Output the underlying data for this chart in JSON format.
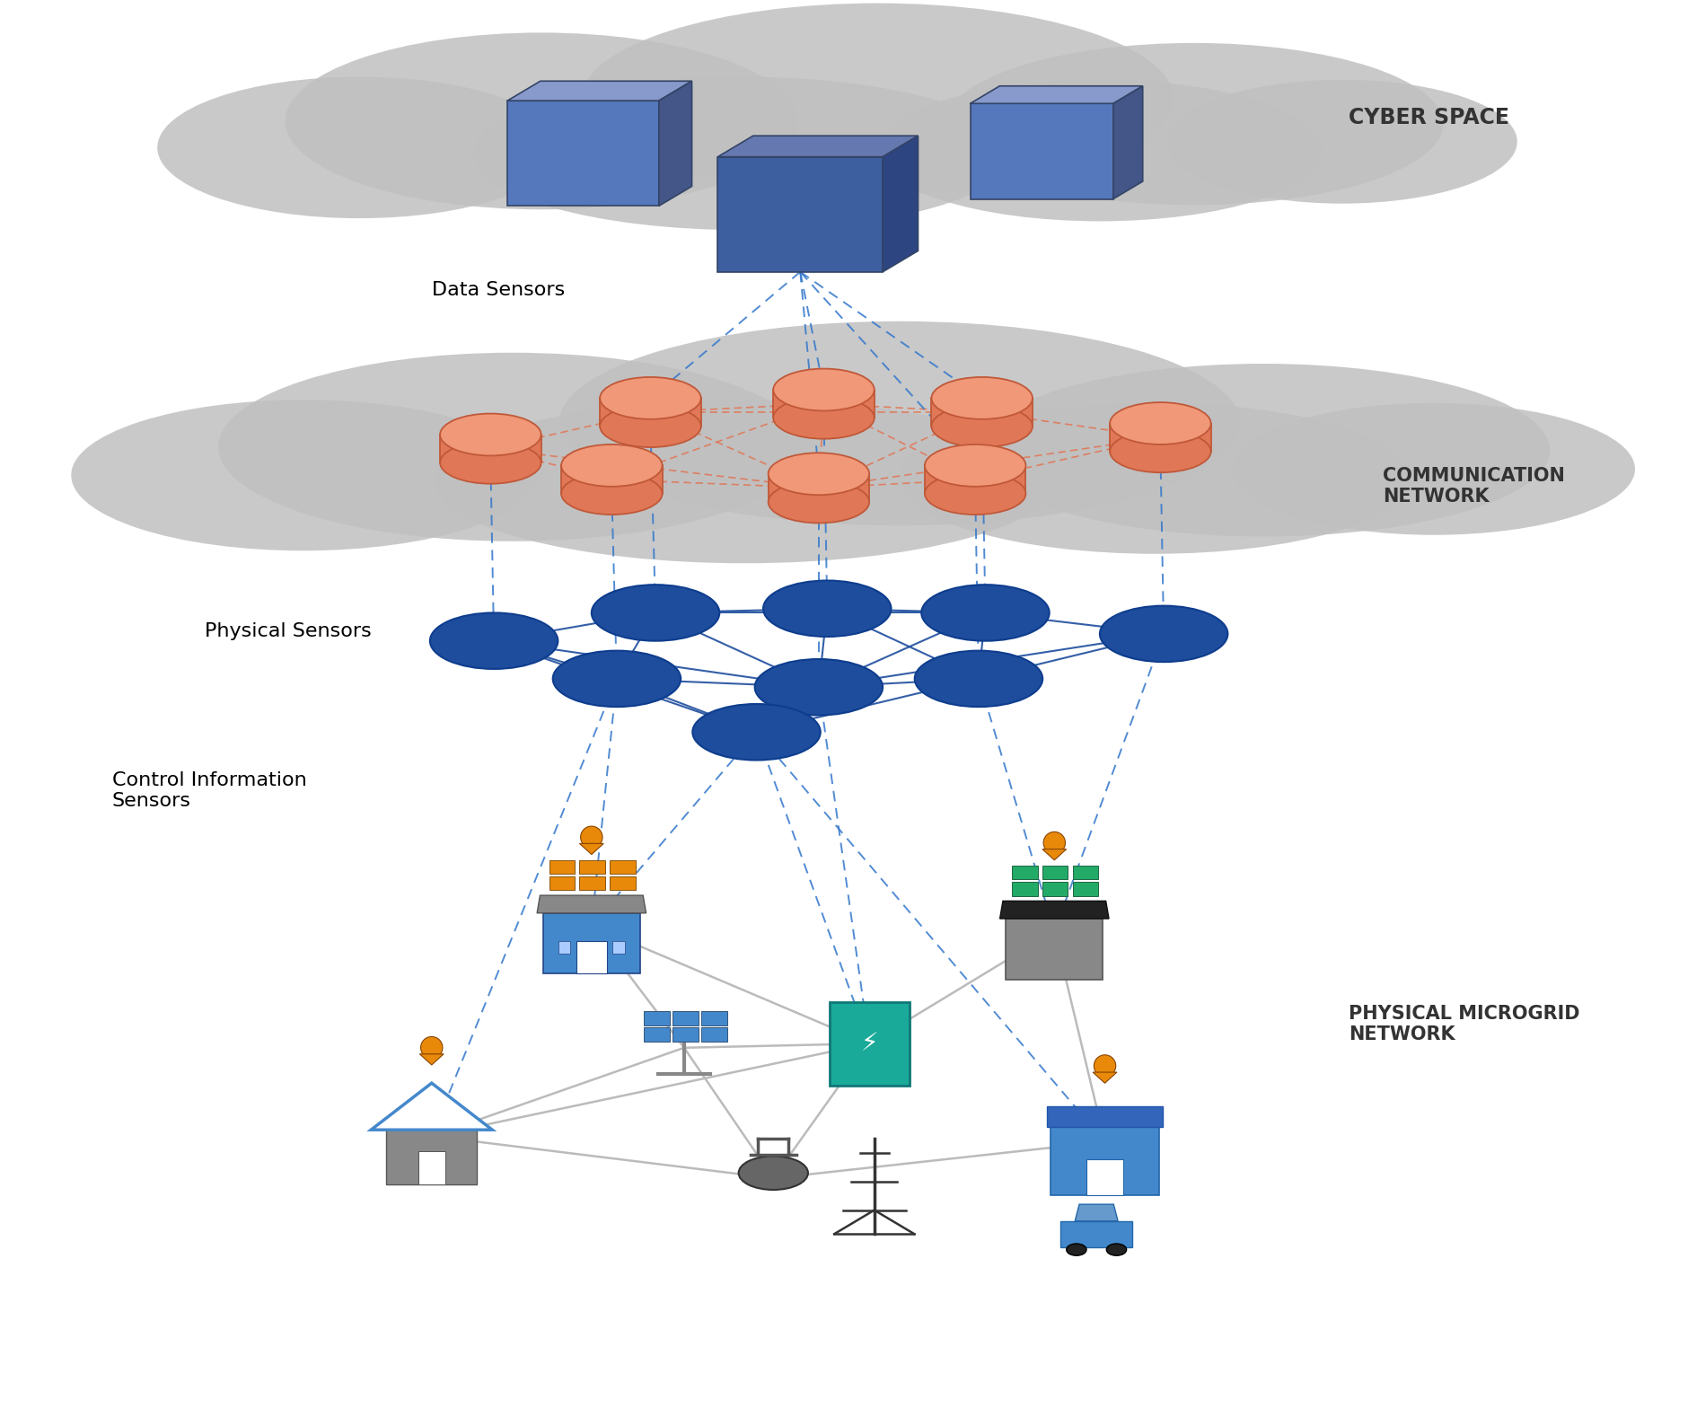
{
  "background": "#ffffff",
  "cloud_color": "#c0c0c0",
  "comm_node_face": "#e07858",
  "comm_node_top": "#f09878",
  "comm_node_edge": "#c05838",
  "phys_node_face": "#1e4d9e",
  "phys_node_edge": "#0e3d8e",
  "dashed_blue": "#3377cc",
  "orange_line": "#e07858",
  "solid_blue": "#1e4d9e",
  "gray_line": "#bbbbbb",
  "box_face": "#5577bb",
  "box_top": "#8899cc",
  "box_side": "#445588",
  "box_face2": "#3d5fa0",
  "box_top2": "#6678b0",
  "box_side2": "#2d4580",
  "label_cyber": "CYBER SPACE",
  "label_comm": "COMMUNICATION\nNETWORK",
  "label_data": "Data Sensors",
  "label_phys": "Physical Sensors",
  "label_ctrl": "Control Information\nSensors",
  "label_microgrid": "PHYSICAL MICROGRID\nNETWORK",
  "pin_color": "#e8890a",
  "solar_orange": "#e8890a",
  "solar_green": "#22aa66",
  "solar_blue": "#4488cc",
  "bld_blue": "#4488cc",
  "bld_gray": "#888888",
  "teal": "#1aaa99",
  "car_blue": "#4488cc"
}
